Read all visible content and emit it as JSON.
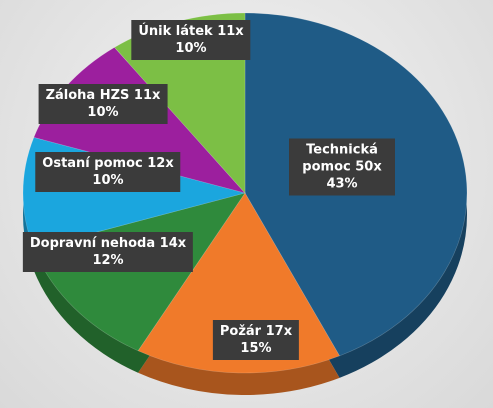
{
  "chart_data": {
    "type": "pie",
    "categories": [
      "Technická pomoc",
      "Požár",
      "Dopravní nehoda",
      "Ostaní pomoc",
      "Záloha HZS",
      "Únik látek"
    ],
    "count_labels": [
      "50x",
      "17x",
      "14x",
      "12x",
      "11x",
      "11x"
    ],
    "values": [
      43,
      15,
      12,
      10,
      10,
      10
    ],
    "value_labels": [
      "43%",
      "15%",
      "12%",
      "10%",
      "10%",
      "10%"
    ],
    "colors": [
      "#1f5b86",
      "#f07a2a",
      "#2f8a3c",
      "#1ba6de",
      "#9c1f9e",
      "#7cbf45"
    ]
  }
}
